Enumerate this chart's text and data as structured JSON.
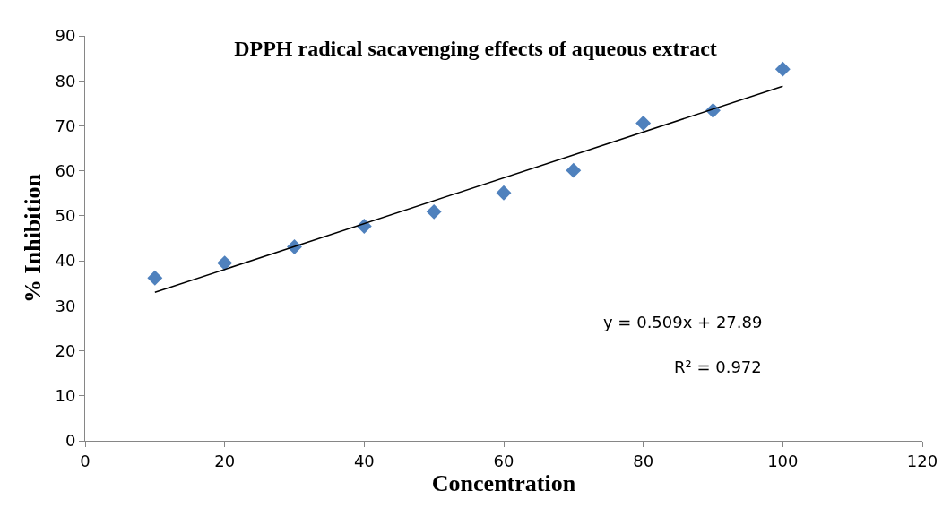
{
  "chart_data": {
    "type": "scatter",
    "title": "DPPH radical sacavenging effects of aqueous extract",
    "xlabel": "Concentration",
    "ylabel": "% Inhibition",
    "x": [
      10,
      20,
      30,
      40,
      50,
      60,
      70,
      80,
      90,
      100
    ],
    "series": [
      {
        "color": "#4f81bd",
        "marker": "diamond",
        "values": [
          36.2,
          39.5,
          43.1,
          47.7,
          50.9,
          55.1,
          60.1,
          70.6,
          73.4,
          82.6
        ]
      },
      {
        "type": "line",
        "color": "#000000",
        "marker": "none",
        "x": [
          10,
          100
        ],
        "values": [
          33.0,
          78.8
        ]
      }
    ],
    "annotations": [
      "y = 0.509x + 27.89",
      "R² = 0.972"
    ],
    "xlim": [
      0,
      120
    ],
    "xticks": [
      0,
      20,
      40,
      60,
      80,
      100,
      120
    ],
    "ylim": [
      0,
      90
    ],
    "yticks": [
      0,
      10,
      20,
      30,
      40,
      50,
      60,
      70,
      80,
      90
    ]
  }
}
